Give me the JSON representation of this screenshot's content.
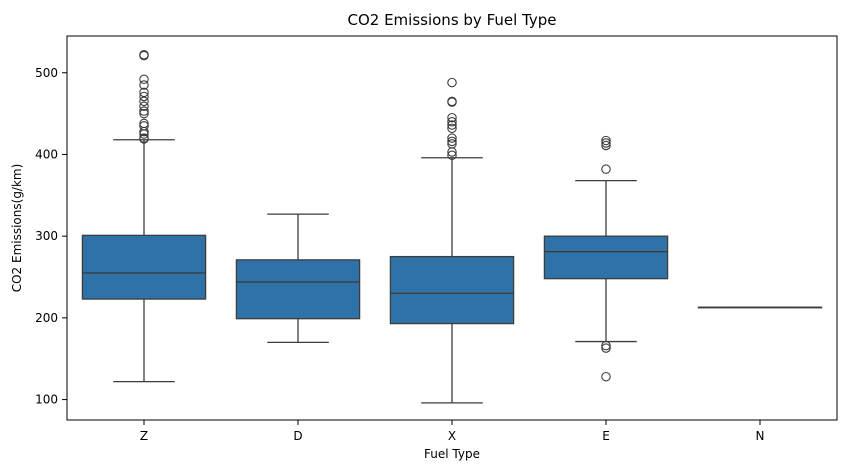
{
  "chart_data": {
    "type": "box",
    "title": "CO2 Emissions by Fuel Type",
    "xlabel": "Fuel Type",
    "ylabel": "CO2 Emissions(g/km)",
    "ylim": [
      75,
      545
    ],
    "yticks": [
      100,
      200,
      300,
      400,
      500
    ],
    "grid": false,
    "legend": "none",
    "box_color": "#2e72a7",
    "line_color": "#3d3d3d",
    "categories": [
      "Z",
      "D",
      "X",
      "E",
      "N"
    ],
    "boxes": [
      {
        "category": "Z",
        "whisker_low": 122,
        "q1": 223,
        "median": 255,
        "q3": 301,
        "whisker_high": 418,
        "outliers": [
          522,
          521,
          492,
          485,
          476,
          471,
          465,
          459,
          453,
          450,
          438,
          435,
          428,
          425,
          420,
          419
        ]
      },
      {
        "category": "D",
        "whisker_low": 170,
        "q1": 199,
        "median": 244,
        "q3": 271,
        "whisker_high": 327,
        "outliers": []
      },
      {
        "category": "X",
        "whisker_low": 96,
        "q1": 193,
        "median": 230,
        "q3": 275,
        "whisker_high": 396,
        "outliers": [
          488,
          465,
          464,
          445,
          440,
          436,
          432,
          420,
          416,
          413,
          403,
          399
        ]
      },
      {
        "category": "E",
        "whisker_low": 171,
        "q1": 248,
        "median": 281,
        "q3": 300,
        "whisker_high": 368,
        "outliers": [
          417,
          414,
          411,
          382,
          166,
          163,
          128
        ]
      },
      {
        "category": "N",
        "whisker_low": 213,
        "q1": 213,
        "median": 213,
        "q3": 213,
        "whisker_high": 213,
        "outliers": []
      }
    ]
  }
}
